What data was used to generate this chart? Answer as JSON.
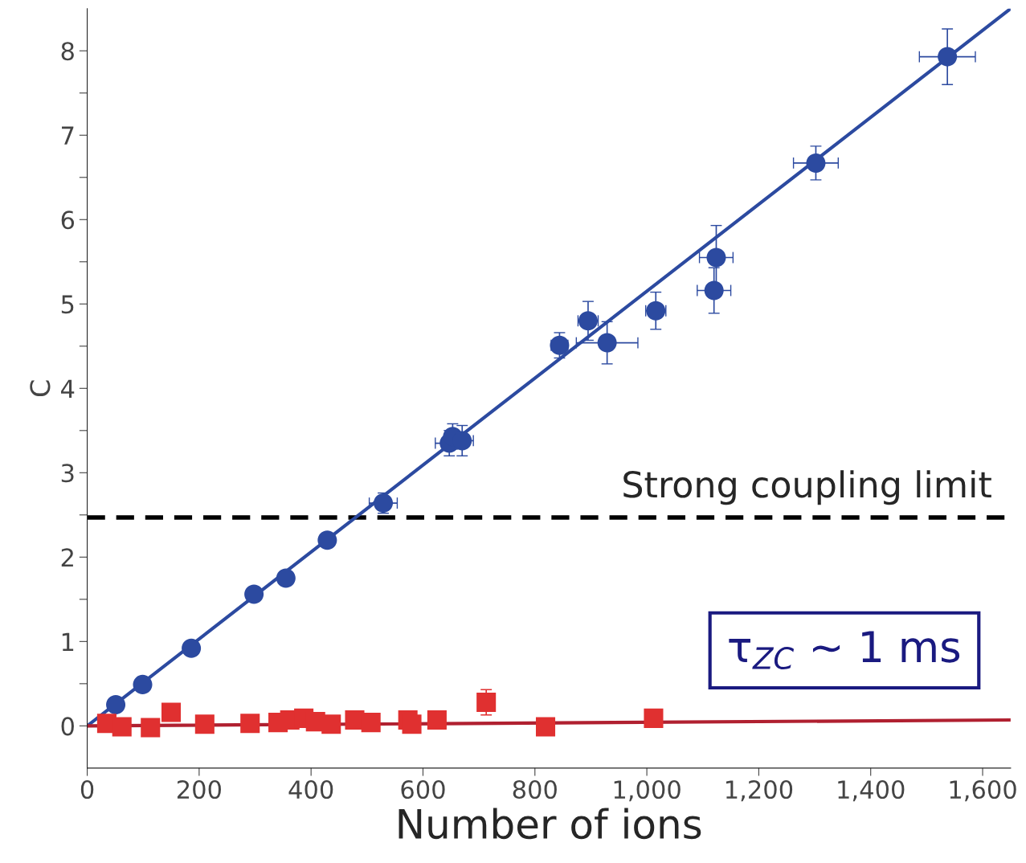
{
  "chart_data": {
    "type": "scatter",
    "xlabel": "Number of ions",
    "ylabel": "C",
    "xlim": [
      0,
      1650
    ],
    "ylim": [
      -0.5,
      8.5
    ],
    "xticks": [
      0,
      200,
      400,
      600,
      800,
      {
        "value": 1000,
        "label": "1,000"
      },
      {
        "value": 1200,
        "label": "1,200"
      },
      {
        "value": 1400,
        "label": "1,400"
      },
      {
        "value": 1600,
        "label": "1,600"
      }
    ],
    "yticks": [
      0,
      {
        "value": 0.5,
        "label": null
      },
      1,
      {
        "value": 1.5,
        "label": null
      },
      2,
      {
        "value": 2.5,
        "label": null
      },
      3,
      {
        "value": 3.5,
        "label": null
      },
      4,
      {
        "value": 4.5,
        "label": null
      },
      5,
      {
        "value": 5.5,
        "label": null
      },
      6,
      {
        "value": 6.5,
        "label": null
      },
      7,
      {
        "value": 7.5,
        "label": null
      },
      8
    ],
    "grid": false,
    "legend": false,
    "series": [
      {
        "marker": "circle",
        "color": "#2c4aa0",
        "x": [
          51,
          99,
          186,
          298,
          355,
          429,
          529,
          647,
          653,
          670,
          844,
          895,
          929,
          1016,
          1120,
          1124,
          1302,
          1537
        ],
        "values": [
          0.25,
          0.49,
          0.92,
          1.56,
          1.75,
          2.2,
          2.64,
          3.35,
          3.43,
          3.38,
          4.51,
          4.8,
          4.54,
          4.92,
          5.16,
          5.55,
          6.67,
          7.93
        ],
        "errors": [
          0.05,
          0.05,
          0.06,
          0.08,
          0.08,
          0.08,
          0.12,
          0.15,
          0.15,
          0.18,
          0.15,
          0.23,
          0.25,
          0.22,
          0.27,
          0.38,
          0.2,
          0.33
        ],
        "xerrors": [
          5,
          5,
          8,
          10,
          10,
          12,
          25,
          25,
          null,
          20,
          15,
          18,
          55,
          18,
          30,
          30,
          40,
          50
        ]
      },
      {
        "type": "line",
        "color": "#2c4aa0",
        "x": [
          0,
          1650
        ],
        "values": [
          0,
          8.5
        ]
      },
      {
        "marker": "square",
        "color": "#e03030",
        "x": [
          35,
          62,
          113,
          150,
          210,
          291,
          341,
          362,
          387,
          408,
          436,
          478,
          507,
          573,
          580,
          625,
          713,
          819,
          1012
        ],
        "values": [
          0.03,
          -0.01,
          -0.02,
          0.16,
          0.02,
          0.03,
          0.04,
          0.07,
          0.09,
          0.05,
          0.02,
          0.07,
          0.04,
          0.07,
          0.02,
          0.07,
          0.28,
          -0.01,
          0.09
        ],
        "errors": [
          null,
          null,
          null,
          null,
          null,
          null,
          null,
          null,
          null,
          null,
          null,
          null,
          null,
          null,
          null,
          null,
          0.15,
          null,
          null
        ]
      },
      {
        "type": "line",
        "color": "#b02030",
        "x": [
          0,
          1650
        ],
        "values": [
          0,
          0.07
        ]
      }
    ],
    "ref_lines": [
      {
        "axis": "y",
        "value": 2.47,
        "label": "Strong coupling limit",
        "color": "#000000",
        "line_style": "dashed"
      }
    ],
    "annotations": [
      "τ$_{ZC}$ ~ 1 ms"
    ]
  }
}
